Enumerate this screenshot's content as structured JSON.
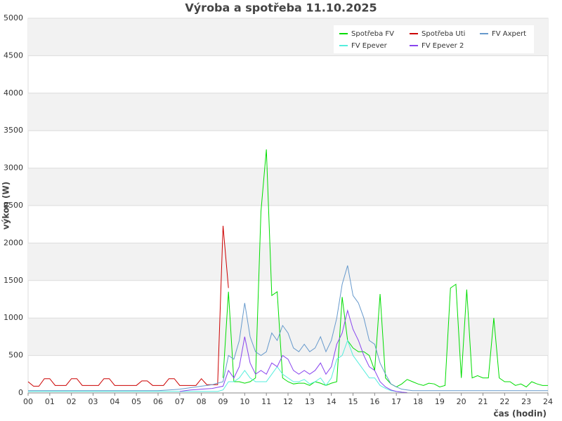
{
  "chart_data": {
    "type": "line",
    "title": "Výroba a spotřeba 11.10.2025",
    "x_label": "čas (hodin)",
    "y_label": "výkon (W)",
    "x": [
      0,
      0.25,
      0.5,
      0.75,
      1,
      1.25,
      1.5,
      1.75,
      2,
      2.25,
      2.5,
      2.75,
      3,
      3.25,
      3.5,
      3.75,
      4,
      4.25,
      4.5,
      4.75,
      5,
      5.25,
      5.5,
      5.75,
      6,
      6.25,
      6.5,
      6.75,
      7,
      7.25,
      7.5,
      7.75,
      8,
      8.25,
      8.5,
      8.75,
      9,
      9.25,
      9.5,
      9.75,
      10,
      10.25,
      10.5,
      10.75,
      11,
      11.25,
      11.5,
      11.75,
      12,
      12.25,
      12.5,
      12.75,
      13,
      13.25,
      13.5,
      13.75,
      14,
      14.25,
      14.5,
      14.75,
      15,
      15.25,
      15.5,
      15.75,
      16,
      16.25,
      16.5,
      16.75,
      17,
      17.25,
      17.5,
      17.75,
      18,
      18.25,
      18.5,
      18.75,
      19,
      19.25,
      19.5,
      19.75,
      20,
      20.25,
      20.5,
      20.75,
      21,
      21.25,
      21.5,
      21.75,
      22,
      22.25,
      22.5,
      22.75,
      23,
      23.25,
      23.5,
      23.75,
      24
    ],
    "series": [
      {
        "name": "Spotřeba FV",
        "color": "#00dd00",
        "values": [
          null,
          null,
          null,
          null,
          null,
          null,
          null,
          null,
          null,
          null,
          null,
          null,
          null,
          null,
          null,
          null,
          null,
          null,
          null,
          null,
          null,
          null,
          null,
          null,
          null,
          null,
          null,
          null,
          null,
          null,
          null,
          null,
          null,
          null,
          null,
          null,
          200,
          1350,
          150,
          150,
          130,
          150,
          200,
          2420,
          3250,
          1300,
          1350,
          200,
          150,
          120,
          130,
          130,
          100,
          150,
          130,
          100,
          130,
          150,
          1280,
          700,
          600,
          550,
          550,
          500,
          300,
          1320,
          200,
          120,
          80,
          120,
          180,
          150,
          120,
          100,
          130,
          120,
          80,
          100,
          1400,
          1450,
          200,
          1380,
          200,
          230,
          200,
          200,
          1000,
          200,
          150,
          150,
          100,
          120,
          80,
          150,
          120,
          100,
          100
        ]
      },
      {
        "name": "Spotřeba Uti",
        "color": "#cc0000",
        "values": [
          150,
          90,
          90,
          190,
          190,
          100,
          100,
          100,
          190,
          190,
          100,
          100,
          100,
          100,
          190,
          190,
          100,
          100,
          100,
          100,
          100,
          160,
          160,
          100,
          100,
          100,
          190,
          190,
          100,
          100,
          100,
          100,
          190,
          110,
          110,
          110,
          2230,
          1400,
          null,
          null,
          null,
          null,
          null,
          null,
          null,
          null,
          null,
          null,
          null,
          null,
          null,
          null,
          null,
          null,
          null,
          null,
          null,
          null,
          null,
          null,
          null,
          null,
          null,
          null,
          null,
          null,
          null,
          null,
          null,
          null,
          null,
          null,
          null,
          null,
          null,
          null,
          null,
          null,
          null,
          null,
          null,
          null,
          null,
          null,
          null,
          null,
          null,
          null,
          null,
          null,
          null,
          null,
          null,
          null,
          null,
          null,
          null
        ]
      },
      {
        "name": "FV Axpert",
        "color": "#6699cc",
        "values": [
          30,
          30,
          30,
          30,
          30,
          30,
          30,
          30,
          30,
          30,
          30,
          30,
          30,
          30,
          30,
          30,
          30,
          30,
          30,
          30,
          30,
          30,
          30,
          30,
          30,
          35,
          40,
          45,
          50,
          60,
          70,
          80,
          90,
          100,
          110,
          130,
          150,
          500,
          450,
          700,
          1200,
          750,
          550,
          500,
          550,
          800,
          700,
          900,
          800,
          600,
          550,
          650,
          550,
          600,
          750,
          550,
          700,
          1000,
          1450,
          1700,
          1300,
          1200,
          1000,
          700,
          650,
          400,
          250,
          120,
          80,
          50,
          40,
          30,
          30,
          30,
          30,
          30,
          30,
          30,
          30,
          30,
          30,
          30,
          30,
          30,
          30,
          30,
          30,
          30,
          30,
          30,
          30,
          30,
          30,
          30,
          30,
          30,
          30
        ]
      },
      {
        "name": "FV Epever",
        "color": "#55eedd",
        "values": [
          20,
          20,
          20,
          20,
          20,
          20,
          20,
          20,
          20,
          20,
          20,
          20,
          20,
          20,
          20,
          20,
          20,
          20,
          20,
          20,
          20,
          20,
          20,
          20,
          20,
          20,
          20,
          20,
          20,
          20,
          20,
          20,
          20,
          20,
          20,
          20,
          40,
          150,
          150,
          200,
          300,
          200,
          150,
          150,
          150,
          250,
          350,
          250,
          200,
          150,
          150,
          180,
          120,
          150,
          200,
          100,
          200,
          450,
          500,
          700,
          500,
          400,
          300,
          200,
          200,
          100,
          60,
          30,
          20,
          10,
          null,
          null,
          null,
          null,
          null,
          null,
          null,
          null,
          null,
          null,
          null,
          null,
          null,
          null,
          null,
          null,
          null,
          null,
          null,
          null,
          null,
          null,
          null,
          null,
          null,
          null,
          null
        ]
      },
      {
        "name": "FV Epever 2",
        "color": "#8844ee",
        "values": [
          null,
          null,
          null,
          null,
          null,
          null,
          null,
          null,
          null,
          null,
          null,
          null,
          null,
          null,
          null,
          null,
          null,
          null,
          null,
          null,
          null,
          null,
          null,
          null,
          null,
          null,
          null,
          null,
          20,
          30,
          40,
          45,
          50,
          55,
          60,
          75,
          90,
          300,
          200,
          350,
          750,
          400,
          250,
          300,
          250,
          400,
          350,
          500,
          450,
          300,
          250,
          300,
          250,
          300,
          400,
          250,
          350,
          650,
          800,
          1100,
          850,
          700,
          500,
          350,
          300,
          150,
          80,
          40,
          20,
          10,
          5,
          null,
          null,
          null,
          null,
          null,
          null,
          null,
          null,
          null,
          null,
          null,
          null,
          null,
          null,
          null,
          null,
          null,
          null,
          null,
          null,
          null,
          null,
          null,
          null,
          null,
          null
        ]
      }
    ],
    "xlim": [
      0,
      24
    ],
    "xticks": [
      {
        "value": 0,
        "label": "00"
      },
      {
        "value": 1,
        "label": "01"
      },
      {
        "value": 2,
        "label": "02"
      },
      {
        "value": 3,
        "label": "03"
      },
      {
        "value": 4,
        "label": "04"
      },
      {
        "value": 5,
        "label": "05"
      },
      {
        "value": 6,
        "label": "06"
      },
      {
        "value": 7,
        "label": "07"
      },
      {
        "value": 8,
        "label": "08"
      },
      {
        "value": 9,
        "label": "09"
      },
      10,
      11,
      12,
      13,
      14,
      15,
      16,
      17,
      18,
      19,
      20,
      21,
      22,
      23,
      24
    ],
    "ylim": [
      0,
      5000
    ],
    "yticks": [
      0,
      500,
      1000,
      1500,
      2000,
      2500,
      3000,
      3500,
      4000,
      4500,
      5000
    ],
    "grid": true,
    "legend_position": "upper right"
  }
}
